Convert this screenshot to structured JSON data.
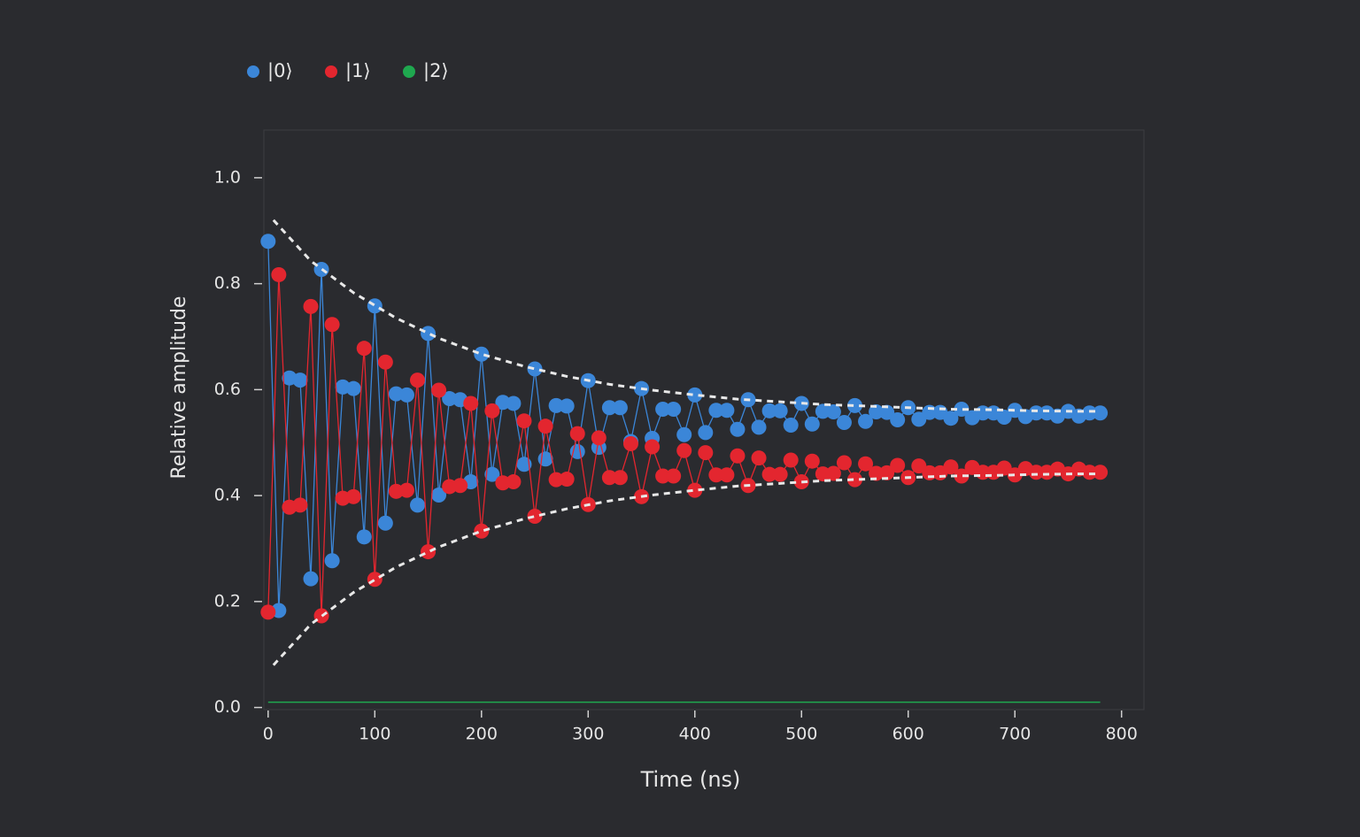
{
  "chart_data": {
    "type": "scatter-line",
    "x_label": "Time (ns)",
    "y_label": "Relative amplitude",
    "xlim": [
      -4,
      821
    ],
    "ylim": [
      -0.004,
      1.09
    ],
    "xticks": [
      0,
      100,
      200,
      300,
      400,
      500,
      600,
      700,
      800
    ],
    "yticks": [
      {
        "value": 0,
        "label": "0.0"
      },
      {
        "value": 0.2,
        "label": "0.2"
      },
      {
        "value": 0.4,
        "label": "0.4"
      },
      {
        "value": 0.6,
        "label": "0.6"
      },
      {
        "value": 0.8,
        "label": "0.8"
      },
      {
        "value": 1,
        "label": "1.0"
      }
    ],
    "x": [
      0,
      10,
      20,
      30,
      40,
      50,
      60,
      70,
      80,
      90,
      100,
      110,
      120,
      130,
      140,
      150,
      160,
      170,
      180,
      190,
      200,
      210,
      220,
      230,
      240,
      250,
      260,
      270,
      280,
      290,
      300,
      310,
      320,
      330,
      340,
      350,
      360,
      370,
      380,
      390,
      400,
      410,
      420,
      430,
      440,
      450,
      460,
      470,
      480,
      490,
      500,
      510,
      520,
      530,
      540,
      550,
      560,
      570,
      580,
      590,
      600,
      610,
      620,
      630,
      640,
      650,
      660,
      670,
      680,
      690,
      700,
      710,
      720,
      730,
      740,
      750,
      760,
      770,
      780
    ],
    "series": [
      {
        "name": "|0⟩",
        "color": "#3b86d8",
        "markers": true,
        "values": [
          0.88,
          0.183,
          0.622,
          0.618,
          0.243,
          0.827,
          0.277,
          0.605,
          0.602,
          0.322,
          0.758,
          0.348,
          0.592,
          0.59,
          0.382,
          0.706,
          0.401,
          0.583,
          0.581,
          0.426,
          0.667,
          0.44,
          0.576,
          0.574,
          0.459,
          0.639,
          0.469,
          0.57,
          0.569,
          0.483,
          0.617,
          0.491,
          0.566,
          0.566,
          0.502,
          0.602,
          0.508,
          0.563,
          0.563,
          0.515,
          0.59,
          0.519,
          0.561,
          0.561,
          0.525,
          0.581,
          0.529,
          0.56,
          0.56,
          0.533,
          0.574,
          0.535,
          0.559,
          0.558,
          0.538,
          0.57,
          0.54,
          0.558,
          0.557,
          0.543,
          0.566,
          0.544,
          0.557,
          0.557,
          0.546,
          0.563,
          0.547,
          0.556,
          0.556,
          0.548,
          0.561,
          0.549,
          0.556,
          0.556,
          0.55,
          0.559,
          0.55,
          0.556,
          0.556
        ]
      },
      {
        "name": "|1⟩",
        "color": "#e3262f",
        "markers": true,
        "values": [
          0.18,
          0.817,
          0.378,
          0.382,
          0.757,
          0.173,
          0.723,
          0.395,
          0.398,
          0.678,
          0.242,
          0.652,
          0.408,
          0.41,
          0.618,
          0.294,
          0.599,
          0.417,
          0.419,
          0.574,
          0.333,
          0.56,
          0.424,
          0.426,
          0.541,
          0.361,
          0.531,
          0.43,
          0.431,
          0.517,
          0.383,
          0.509,
          0.434,
          0.434,
          0.498,
          0.398,
          0.492,
          0.437,
          0.437,
          0.485,
          0.41,
          0.481,
          0.439,
          0.439,
          0.475,
          0.419,
          0.471,
          0.44,
          0.44,
          0.467,
          0.426,
          0.465,
          0.441,
          0.442,
          0.462,
          0.43,
          0.46,
          0.442,
          0.443,
          0.457,
          0.434,
          0.456,
          0.443,
          0.443,
          0.454,
          0.437,
          0.453,
          0.444,
          0.444,
          0.452,
          0.439,
          0.451,
          0.444,
          0.444,
          0.45,
          0.441,
          0.45,
          0.444,
          0.444
        ]
      },
      {
        "name": "|2⟩",
        "color": "#1fa84f",
        "markers": false,
        "values": [
          0.01,
          0.01,
          0.01,
          0.01,
          0.01,
          0.01,
          0.01,
          0.01,
          0.01,
          0.01,
          0.01,
          0.01,
          0.01,
          0.01,
          0.01,
          0.01,
          0.01,
          0.01,
          0.01,
          0.01,
          0.01,
          0.01,
          0.01,
          0.01,
          0.01,
          0.01,
          0.01,
          0.01,
          0.01,
          0.01,
          0.01,
          0.01,
          0.01,
          0.01,
          0.01,
          0.01,
          0.01,
          0.01,
          0.01,
          0.01,
          0.01,
          0.01,
          0.01,
          0.01,
          0.01,
          0.01,
          0.01,
          0.01,
          0.01,
          0.01,
          0.01,
          0.01,
          0.01,
          0.01,
          0.01,
          0.01,
          0.01,
          0.01,
          0.01,
          0.01,
          0.01,
          0.01,
          0.01,
          0.01,
          0.01,
          0.01,
          0.01,
          0.01,
          0.01,
          0.01,
          0.01,
          0.01,
          0.01,
          0.01,
          0.01,
          0.01,
          0.01,
          0.01,
          0.01
        ]
      }
    ],
    "fit_x": [
      5,
      40,
      80,
      120,
      160,
      200,
      240,
      280,
      320,
      360,
      400,
      440,
      480,
      520,
      560,
      600,
      640,
      680,
      720,
      760,
      780
    ],
    "fits": [
      {
        "color": "#e8e8e8",
        "values": [
          0.92,
          0.843,
          0.783,
          0.735,
          0.697,
          0.667,
          0.644,
          0.625,
          0.61,
          0.599,
          0.59,
          0.582,
          0.577,
          0.572,
          0.569,
          0.566,
          0.563,
          0.562,
          0.56,
          0.559,
          0.559
        ]
      },
      {
        "color": "#e8e8e8",
        "values": [
          0.08,
          0.157,
          0.217,
          0.265,
          0.303,
          0.333,
          0.356,
          0.375,
          0.39,
          0.401,
          0.41,
          0.418,
          0.423,
          0.428,
          0.431,
          0.434,
          0.437,
          0.438,
          0.44,
          0.441,
          0.441
        ]
      }
    ]
  }
}
